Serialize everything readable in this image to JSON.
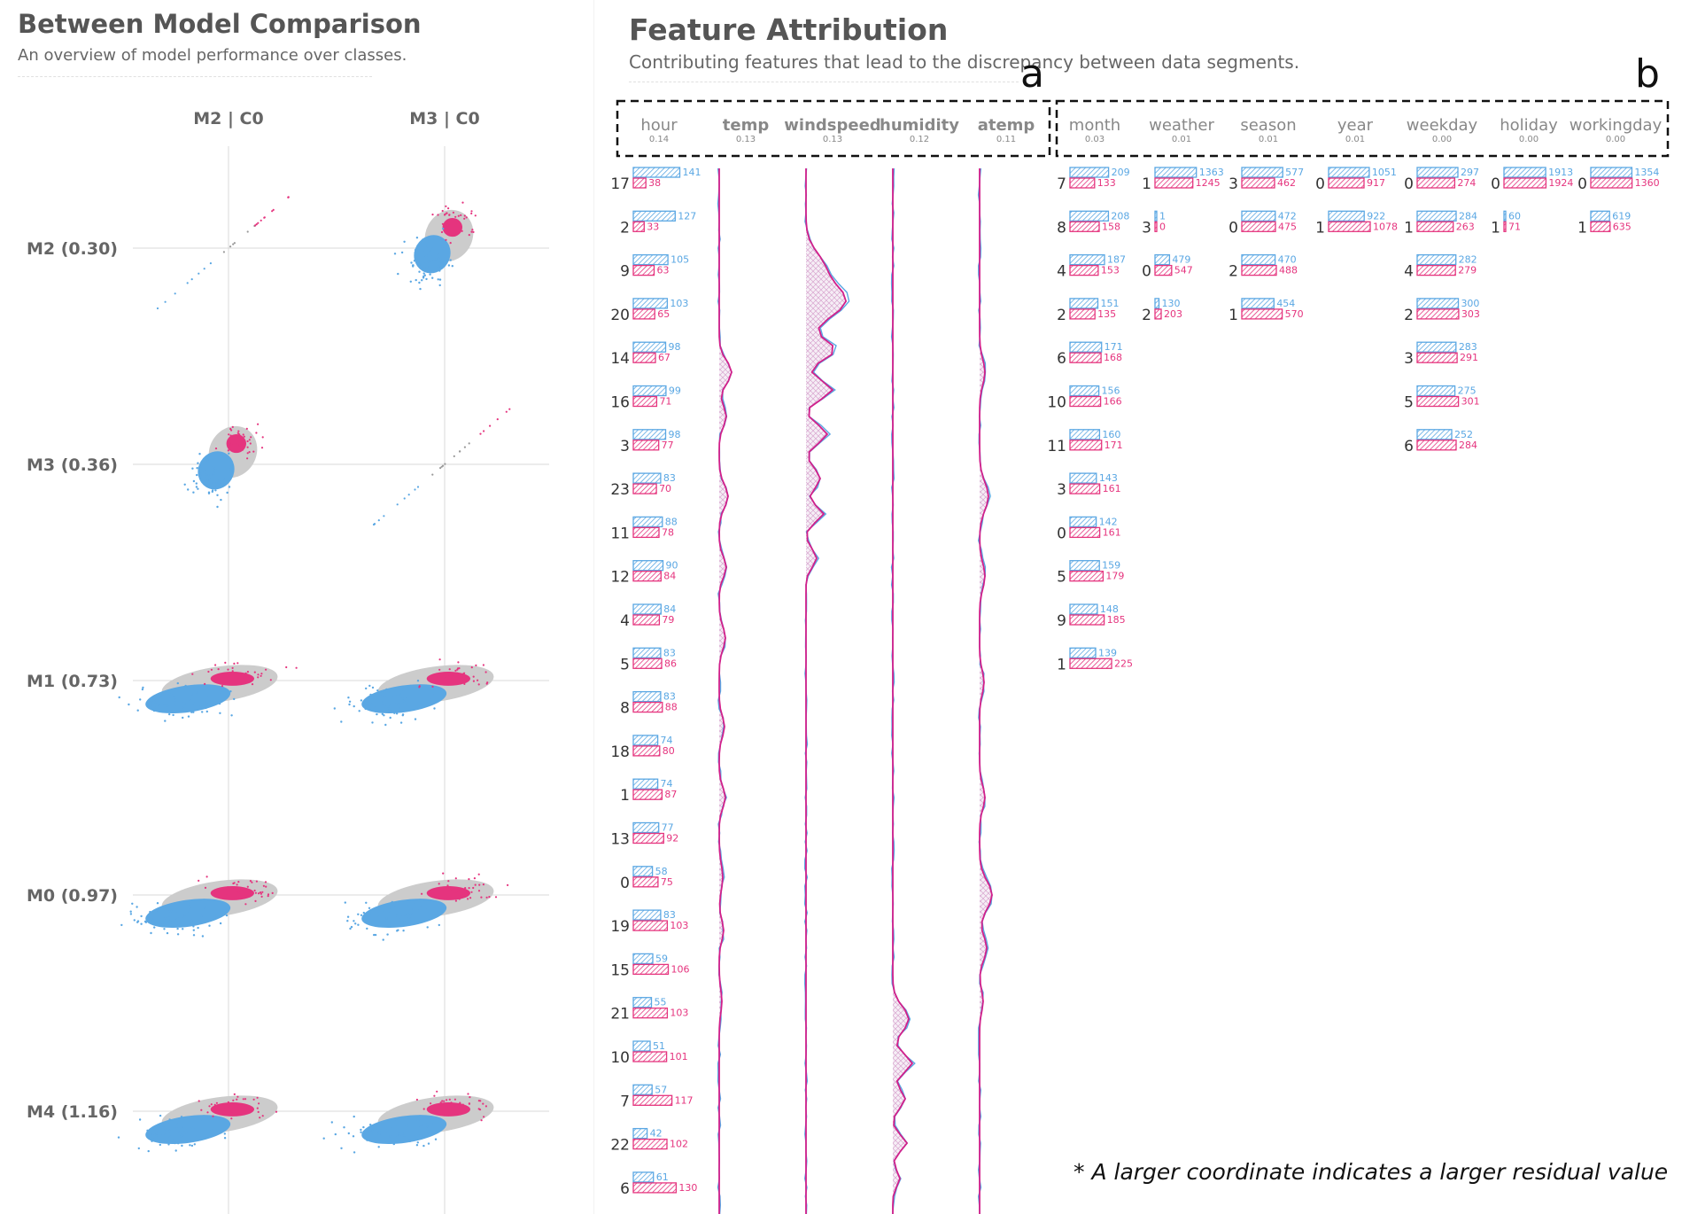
{
  "colors": {
    "blue": "#5aa7e3",
    "pink": "#e5347e",
    "magenta": "#d21f8a",
    "grey": "#cccccc",
    "title": "#555555",
    "rowlabel": "#666666"
  },
  "left_panel": {
    "title": "Between Model Comparison",
    "subtitle": "An overview of model performance over classes."
  },
  "right_panel": {
    "title": "Feature Attribution",
    "subtitle": "Contributing features that lead to the discrepancy between data segments.",
    "label_a": "a",
    "label_b": "b",
    "footnote": "* A larger coordinate indicates a larger residual value"
  },
  "chart_data": [
    {
      "type": "scatter",
      "title": "Between Model Comparison",
      "columns": [
        "M2 | C0",
        "M3 | C0"
      ],
      "rows": [
        "M2 (0.30)",
        "M3 (0.36)",
        "M1 (0.73)",
        "M0 (0.97)",
        "M4 (1.16)"
      ],
      "legend": "none"
    },
    {
      "type": "bar",
      "title": "Feature Attribution",
      "features": [
        {
          "name": "hour",
          "score": "0.14",
          "kind": "categorical"
        },
        {
          "name": "temp",
          "score": "0.13",
          "kind": "continuous"
        },
        {
          "name": "windspeed",
          "score": "0.13",
          "kind": "continuous"
        },
        {
          "name": "humidity",
          "score": "0.12",
          "kind": "continuous"
        },
        {
          "name": "atemp",
          "score": "0.11",
          "kind": "continuous"
        },
        {
          "name": "month",
          "score": "0.03",
          "kind": "categorical"
        },
        {
          "name": "weather",
          "score": "0.01",
          "kind": "categorical"
        },
        {
          "name": "season",
          "score": "0.01",
          "kind": "categorical"
        },
        {
          "name": "year",
          "score": "0.01",
          "kind": "categorical"
        },
        {
          "name": "weekday",
          "score": "0.00",
          "kind": "categorical"
        },
        {
          "name": "holiday",
          "score": "0.00",
          "kind": "categorical"
        },
        {
          "name": "workingday",
          "score": "0.00",
          "kind": "categorical"
        }
      ],
      "categorical": {
        "hour": [
          [
            "17",
            141,
            38
          ],
          [
            "2",
            127,
            33
          ],
          [
            "9",
            105,
            63
          ],
          [
            "20",
            103,
            65
          ],
          [
            "14",
            98,
            67
          ],
          [
            "16",
            99,
            71
          ],
          [
            "3",
            98,
            77
          ],
          [
            "23",
            83,
            70
          ],
          [
            "11",
            88,
            78
          ],
          [
            "12",
            90,
            84
          ],
          [
            "4",
            84,
            79
          ],
          [
            "5",
            83,
            86
          ],
          [
            "8",
            83,
            88
          ],
          [
            "18",
            74,
            80
          ],
          [
            "1",
            74,
            87
          ],
          [
            "13",
            77,
            92
          ],
          [
            "0",
            58,
            75
          ],
          [
            "19",
            83,
            103
          ],
          [
            "15",
            59,
            106
          ],
          [
            "21",
            55,
            103
          ],
          [
            "10",
            51,
            101
          ],
          [
            "7",
            57,
            117
          ],
          [
            "22",
            42,
            102
          ],
          [
            "6",
            61,
            130
          ]
        ],
        "month": [
          [
            "7",
            209,
            133
          ],
          [
            "8",
            208,
            158
          ],
          [
            "4",
            187,
            153
          ],
          [
            "2",
            151,
            135
          ],
          [
            "6",
            171,
            168
          ],
          [
            "10",
            156,
            166
          ],
          [
            "11",
            160,
            171
          ],
          [
            "3",
            143,
            161
          ],
          [
            "0",
            142,
            161
          ],
          [
            "5",
            159,
            179
          ],
          [
            "9",
            148,
            185
          ],
          [
            "1",
            139,
            225
          ]
        ],
        "weather": [
          [
            "1",
            1363,
            1245
          ],
          [
            "3",
            1,
            0
          ],
          [
            "0",
            479,
            547
          ],
          [
            "2",
            130,
            203
          ]
        ],
        "season": [
          [
            "3",
            577,
            462
          ],
          [
            "0",
            472,
            475
          ],
          [
            "2",
            470,
            488
          ],
          [
            "1",
            454,
            570
          ]
        ],
        "year": [
          [
            "0",
            1051,
            917
          ],
          [
            "1",
            922,
            1078
          ]
        ],
        "weekday": [
          [
            "0",
            297,
            274
          ],
          [
            "1",
            284,
            263
          ],
          [
            "4",
            282,
            279
          ],
          [
            "2",
            300,
            303
          ],
          [
            "3",
            283,
            291
          ],
          [
            "5",
            275,
            301
          ],
          [
            "6",
            252,
            284
          ]
        ],
        "holiday": [
          [
            "0",
            1913,
            1924
          ],
          [
            "1",
            60,
            71
          ]
        ],
        "workingday": [
          [
            "0",
            1354,
            1360
          ],
          [
            "1",
            619,
            635
          ]
        ]
      },
      "legend": "none"
    }
  ]
}
